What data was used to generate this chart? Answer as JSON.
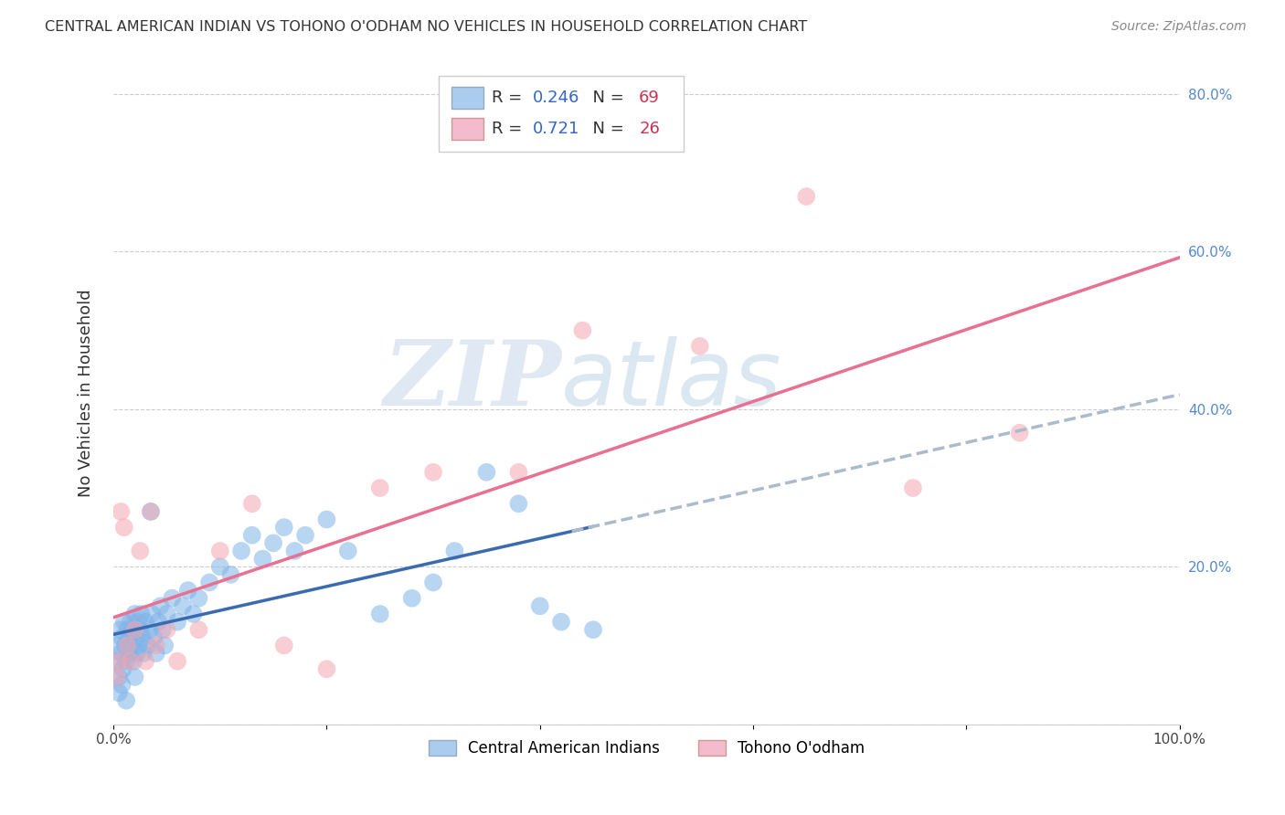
{
  "title": "CENTRAL AMERICAN INDIAN VS TOHONO O'ODHAM NO VEHICLES IN HOUSEHOLD CORRELATION CHART",
  "source": "Source: ZipAtlas.com",
  "ylabel": "No Vehicles in Household",
  "xlim": [
    0.0,
    1.0
  ],
  "ylim": [
    0.0,
    0.84
  ],
  "xticks": [
    0.0,
    0.2,
    0.4,
    0.6,
    0.8,
    1.0
  ],
  "xticklabels": [
    "0.0%",
    "",
    "",
    "",
    "",
    "100.0%"
  ],
  "yticks": [
    0.0,
    0.2,
    0.4,
    0.6,
    0.8
  ],
  "yticklabels": [
    "",
    "20.0%",
    "40.0%",
    "60.0%",
    "80.0%"
  ],
  "grid_color": "#cccccc",
  "background_color": "#ffffff",
  "blue_color": "#7fb3e8",
  "pink_color": "#f4a4b0",
  "blue_line_color": "#3a6ab0",
  "pink_line_color": "#e87090",
  "dashed_line_color": "#aabbcc",
  "r_blue": 0.246,
  "n_blue": 69,
  "r_pink": 0.721,
  "n_pink": 26,
  "legend_label_blue": "Central American Indians",
  "legend_label_pink": "Tohono O'odham",
  "watermark_zip": "ZIP",
  "watermark_atlas": "atlas",
  "blue_scatter_x": [
    0.003,
    0.004,
    0.005,
    0.006,
    0.007,
    0.008,
    0.009,
    0.01,
    0.011,
    0.012,
    0.013,
    0.014,
    0.015,
    0.016,
    0.017,
    0.018,
    0.019,
    0.02,
    0.021,
    0.022,
    0.023,
    0.024,
    0.025,
    0.026,
    0.027,
    0.028,
    0.03,
    0.032,
    0.034,
    0.036,
    0.038,
    0.04,
    0.042,
    0.044,
    0.046,
    0.048,
    0.05,
    0.055,
    0.06,
    0.065,
    0.07,
    0.075,
    0.08,
    0.09,
    0.1,
    0.11,
    0.12,
    0.13,
    0.14,
    0.15,
    0.16,
    0.17,
    0.18,
    0.2,
    0.22,
    0.25,
    0.28,
    0.3,
    0.32,
    0.35,
    0.38,
    0.4,
    0.42,
    0.45,
    0.005,
    0.008,
    0.012,
    0.02,
    0.035
  ],
  "blue_scatter_y": [
    0.08,
    0.1,
    0.06,
    0.12,
    0.09,
    0.11,
    0.07,
    0.13,
    0.1,
    0.08,
    0.12,
    0.09,
    0.11,
    0.13,
    0.1,
    0.12,
    0.08,
    0.14,
    0.11,
    0.09,
    0.13,
    0.1,
    0.12,
    0.14,
    0.11,
    0.09,
    0.13,
    0.1,
    0.12,
    0.14,
    0.11,
    0.09,
    0.13,
    0.15,
    0.12,
    0.1,
    0.14,
    0.16,
    0.13,
    0.15,
    0.17,
    0.14,
    0.16,
    0.18,
    0.2,
    0.19,
    0.22,
    0.24,
    0.21,
    0.23,
    0.25,
    0.22,
    0.24,
    0.26,
    0.22,
    0.14,
    0.16,
    0.18,
    0.22,
    0.32,
    0.28,
    0.15,
    0.13,
    0.12,
    0.04,
    0.05,
    0.03,
    0.06,
    0.27
  ],
  "pink_scatter_x": [
    0.003,
    0.005,
    0.007,
    0.01,
    0.013,
    0.016,
    0.02,
    0.025,
    0.03,
    0.035,
    0.04,
    0.05,
    0.06,
    0.08,
    0.1,
    0.13,
    0.16,
    0.2,
    0.25,
    0.3,
    0.38,
    0.44,
    0.55,
    0.65,
    0.75,
    0.85
  ],
  "pink_scatter_y": [
    0.06,
    0.08,
    0.27,
    0.25,
    0.1,
    0.08,
    0.12,
    0.22,
    0.08,
    0.27,
    0.1,
    0.12,
    0.08,
    0.12,
    0.22,
    0.28,
    0.1,
    0.07,
    0.3,
    0.32,
    0.32,
    0.5,
    0.48,
    0.67,
    0.3,
    0.37
  ]
}
